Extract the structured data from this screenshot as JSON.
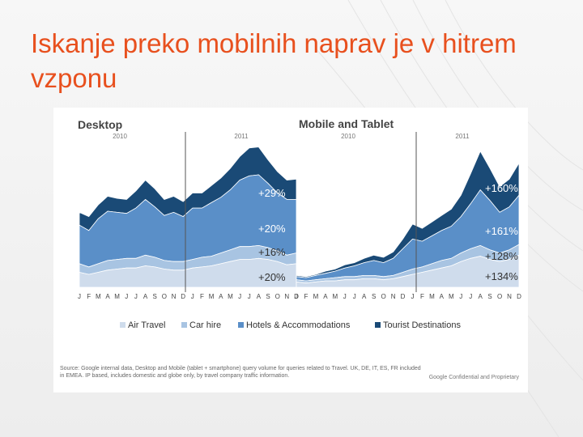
{
  "slide": {
    "title": "Iskanje preko mobilnih naprav je v hitrem vzponu"
  },
  "chart_data": [
    {
      "type": "area",
      "stacked": true,
      "title": "Desktop",
      "year_labels": [
        "2010",
        "2011"
      ],
      "x": [
        "J",
        "F",
        "M",
        "A",
        "M",
        "J",
        "J",
        "A",
        "S",
        "O",
        "N",
        "D",
        "J",
        "F",
        "M",
        "A",
        "M",
        "J",
        "J",
        "A",
        "S",
        "O",
        "N",
        "D"
      ],
      "series": [
        {
          "name": "Air Travel",
          "color": "#cfdcec",
          "values": [
            14,
            12,
            14,
            16,
            17,
            18,
            18,
            20,
            19,
            17,
            16,
            16,
            18,
            19,
            20,
            22,
            24,
            26,
            26,
            27,
            26,
            24,
            21,
            22
          ]
        },
        {
          "name": "Car hire",
          "color": "#a8c4e2",
          "values": [
            8,
            7,
            8,
            9,
            9,
            9,
            9,
            10,
            9,
            8,
            8,
            8,
            8,
            9,
            9,
            10,
            11,
            12,
            12,
            12,
            11,
            10,
            9,
            10
          ]
        },
        {
          "name": "Hotels & Accommodations",
          "color": "#5a8fc8",
          "values": [
            36,
            34,
            42,
            46,
            44,
            42,
            47,
            52,
            47,
            42,
            46,
            42,
            48,
            46,
            50,
            52,
            56,
            62,
            66,
            66,
            60,
            54,
            52,
            50
          ]
        },
        {
          "name": "Tourist Destinations",
          "color": "#1a4a76",
          "values": [
            12,
            13,
            13,
            14,
            13,
            13,
            16,
            18,
            17,
            15,
            15,
            14,
            14,
            14,
            16,
            18,
            20,
            22,
            26,
            26,
            22,
            20,
            18,
            19
          ]
        }
      ],
      "annotations": [
        "+29%",
        "+20%",
        "+16%",
        "+20%"
      ],
      "ylim": [
        0,
        136
      ]
    },
    {
      "type": "area",
      "stacked": true,
      "title": "Mobile and Tablet",
      "year_labels": [
        "2010",
        "2011"
      ],
      "x": [
        "J",
        "F",
        "M",
        "A",
        "M",
        "J",
        "J",
        "A",
        "S",
        "O",
        "N",
        "D",
        "J",
        "F",
        "M",
        "A",
        "M",
        "J",
        "J",
        "A",
        "S",
        "O",
        "N",
        "D"
      ],
      "series": [
        {
          "name": "Air Travel",
          "color": "#cfdcec",
          "values": [
            5,
            4,
            5,
            6,
            6,
            7,
            7,
            8,
            8,
            7,
            8,
            10,
            12,
            14,
            16,
            18,
            20,
            24,
            27,
            29,
            26,
            24,
            26,
            30
          ]
        },
        {
          "name": "Car hire",
          "color": "#a8c4e2",
          "values": [
            2,
            2,
            2,
            2,
            3,
            3,
            3,
            3,
            3,
            3,
            3,
            4,
            5,
            5,
            6,
            7,
            7,
            8,
            9,
            10,
            9,
            8,
            9,
            10
          ]
        },
        {
          "name": "Hotels & Accommodations",
          "color": "#5a8fc8",
          "values": [
            3,
            3,
            4,
            5,
            6,
            8,
            10,
            12,
            14,
            13,
            16,
            22,
            28,
            24,
            26,
            28,
            30,
            34,
            42,
            52,
            46,
            38,
            40,
            46
          ]
        },
        {
          "name": "Tourist Destinations",
          "color": "#1a4a76",
          "values": [
            1,
            1,
            1,
            2,
            2,
            3,
            3,
            4,
            5,
            5,
            6,
            9,
            14,
            12,
            13,
            14,
            16,
            20,
            28,
            36,
            30,
            24,
            26,
            30
          ]
        }
      ],
      "annotations": [
        "+160%",
        "+161%",
        "+128%",
        "+134%"
      ],
      "ylim": [
        0,
        136
      ]
    }
  ],
  "legend": {
    "position": "bottom",
    "items": [
      "Air Travel",
      "Car hire",
      "Hotels & Accommodations",
      "Tourist Destinations"
    ]
  },
  "footer": {
    "source": "Source: Google internal data, Desktop and Mobile (tablet + smartphone) query volume for queries related to Travel. UK, DE, IT, ES, FR included in EMEA. IP based, includes domestic and globe only, by travel company traffic information.",
    "confidential": "Google Confidential and Proprietary"
  }
}
